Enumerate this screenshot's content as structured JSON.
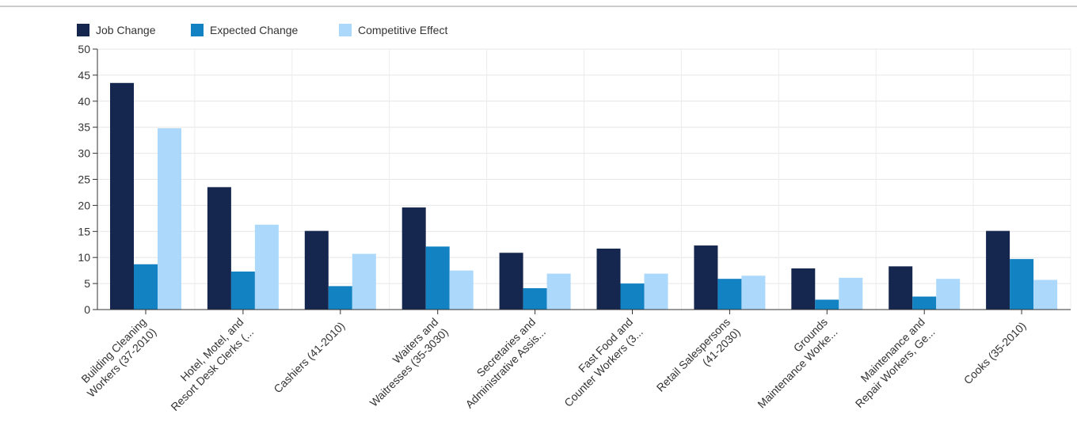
{
  "chart_data": {
    "type": "bar",
    "categories": [
      [
        "Building Cleaning",
        "Workers (37-2010)"
      ],
      [
        "Hotel, Motel, and",
        "Resort Desk Clerks (..."
      ],
      [
        "Cashiers (41-2010)"
      ],
      [
        "Waiters and",
        "Waitresses (35-3030)"
      ],
      [
        "Secretaries and",
        "Administrative Assis..."
      ],
      [
        "Fast Food and",
        "Counter Workers (3..."
      ],
      [
        "Retail Salespersons",
        "(41-2030)"
      ],
      [
        "Grounds",
        "Maintenance Worke..."
      ],
      [
        "Maintenance and",
        "Repair Workers, Ge..."
      ],
      [
        "Cooks (35-2010)"
      ]
    ],
    "series": [
      {
        "name": "Job Change",
        "color": "#16274f",
        "values": [
          43.5,
          23.5,
          15.1,
          19.6,
          10.9,
          11.7,
          12.3,
          7.9,
          8.3,
          15.1
        ]
      },
      {
        "name": "Expected Change",
        "color": "#1282c3",
        "values": [
          8.7,
          7.3,
          4.5,
          12.1,
          4.1,
          5.0,
          5.9,
          1.9,
          2.5,
          9.7
        ]
      },
      {
        "name": "Competitive Effect",
        "color": "#acd9fb",
        "values": [
          34.8,
          16.3,
          10.7,
          7.5,
          6.9,
          6.9,
          6.5,
          6.1,
          5.9,
          5.7
        ]
      }
    ],
    "yticks": [
      "0",
      "5",
      "10",
      "15",
      "20",
      "25",
      "30",
      "35",
      "40",
      "45",
      "50"
    ],
    "ylim": [
      0,
      50
    ],
    "legend_position": "top-left",
    "grid": true
  }
}
